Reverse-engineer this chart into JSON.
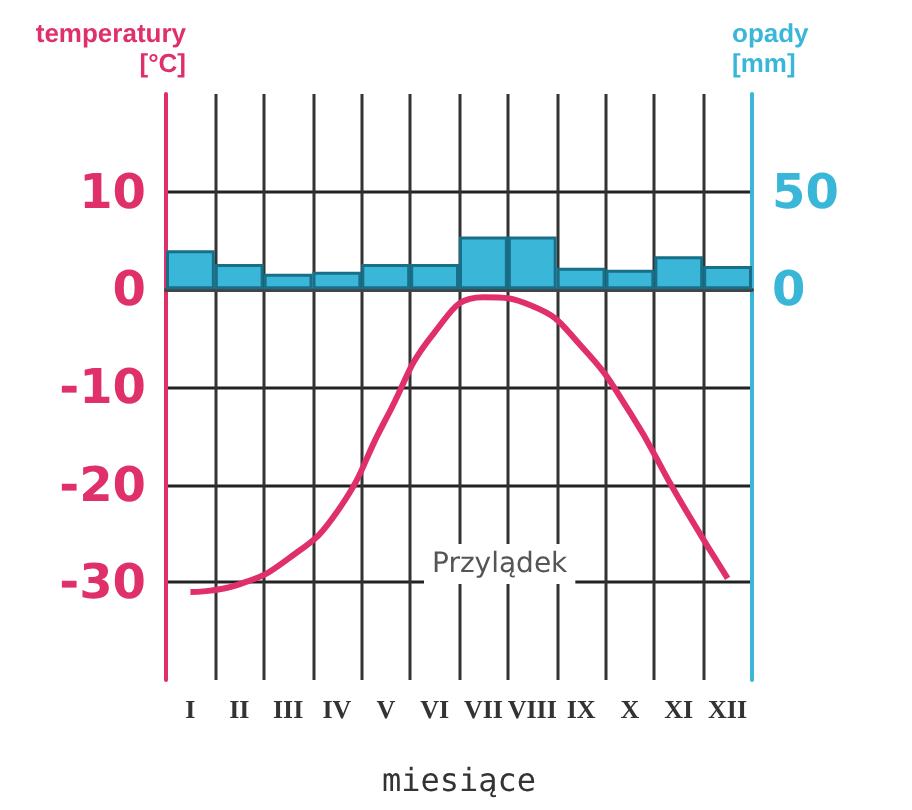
{
  "chart_data": {
    "type": "bar",
    "categories": [
      "I",
      "II",
      "III",
      "IV",
      "V",
      "VI",
      "VII",
      "VIII",
      "IX",
      "X",
      "XI",
      "XII"
    ],
    "series": [
      {
        "axis": "y2",
        "color": "#3ab7d8",
        "values": [
          20,
          13,
          8,
          9,
          13,
          13,
          27,
          27,
          11,
          10,
          17,
          12
        ]
      },
      {
        "type": "line",
        "color": "#e0306a",
        "values": [
          -31,
          -30.2,
          -27.6,
          -22.8,
          -13.3,
          -4.4,
          -0.8,
          -1.7,
          -5.8,
          -12.6,
          -21.4,
          -29.6
        ]
      }
    ],
    "ylabel": "temperatury\n[°C]",
    "y2label": "opady\n[mm]",
    "xlabel": "miesiące",
    "ylim": [
      -40,
      20
    ],
    "yticks": [
      -30,
      -20,
      -10,
      0,
      10
    ],
    "y2lim": [
      -200,
      100
    ],
    "y2ticks": [
      0,
      50
    ],
    "annotations": [
      "Przylądek"
    ],
    "grid": true,
    "marker": "none",
    "line_style": "solid"
  }
}
